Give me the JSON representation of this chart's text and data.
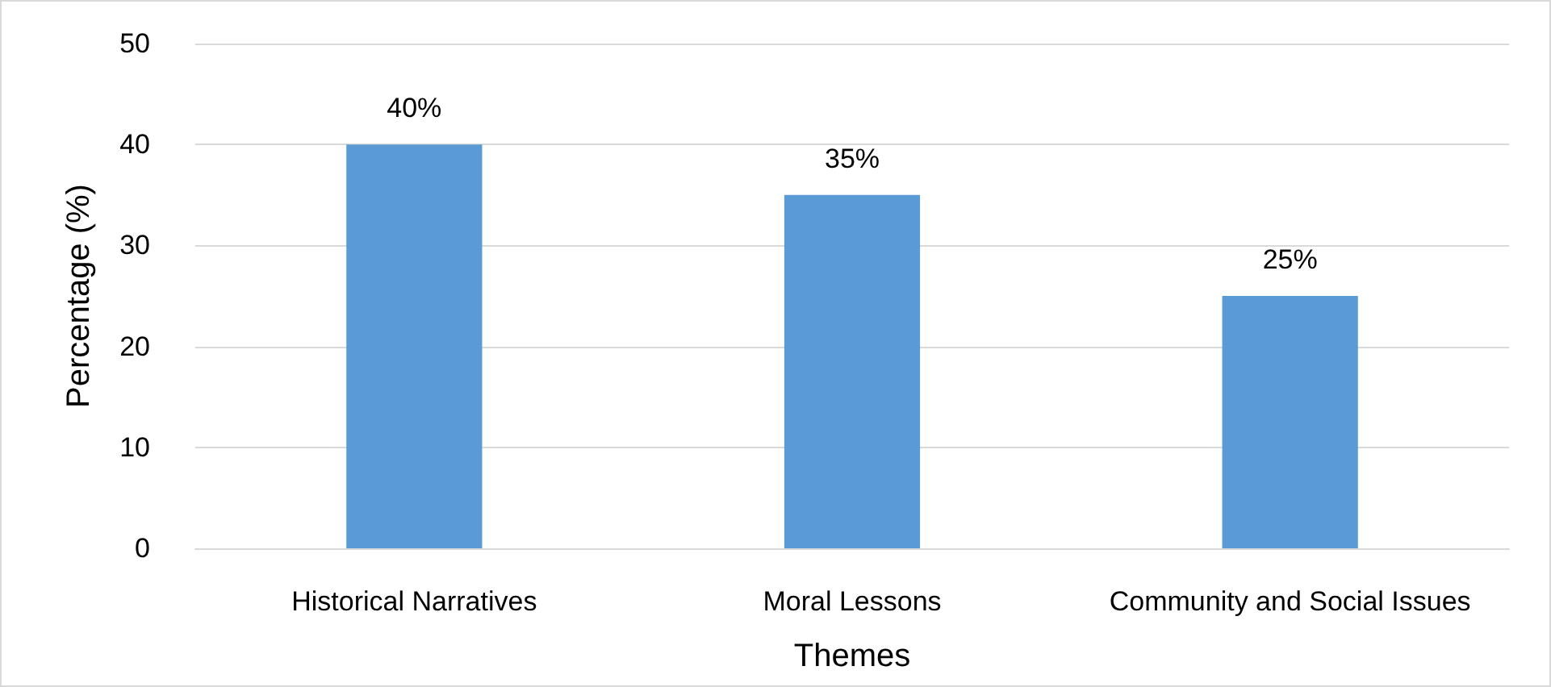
{
  "chart_data": {
    "type": "bar",
    "xlabel": "Themes",
    "ylabel": "Percentage (%)",
    "categories": [
      "Historical Narratives",
      "Moral Lessons",
      "Community and Social Issues"
    ],
    "values": [
      40,
      35,
      25
    ],
    "value_labels": [
      "40%",
      "35%",
      "25%"
    ],
    "color": "#5b9bd5",
    "ylim": [
      0,
      50
    ],
    "yticks": [
      0,
      10,
      20,
      30,
      40,
      50
    ],
    "grid": "y"
  }
}
